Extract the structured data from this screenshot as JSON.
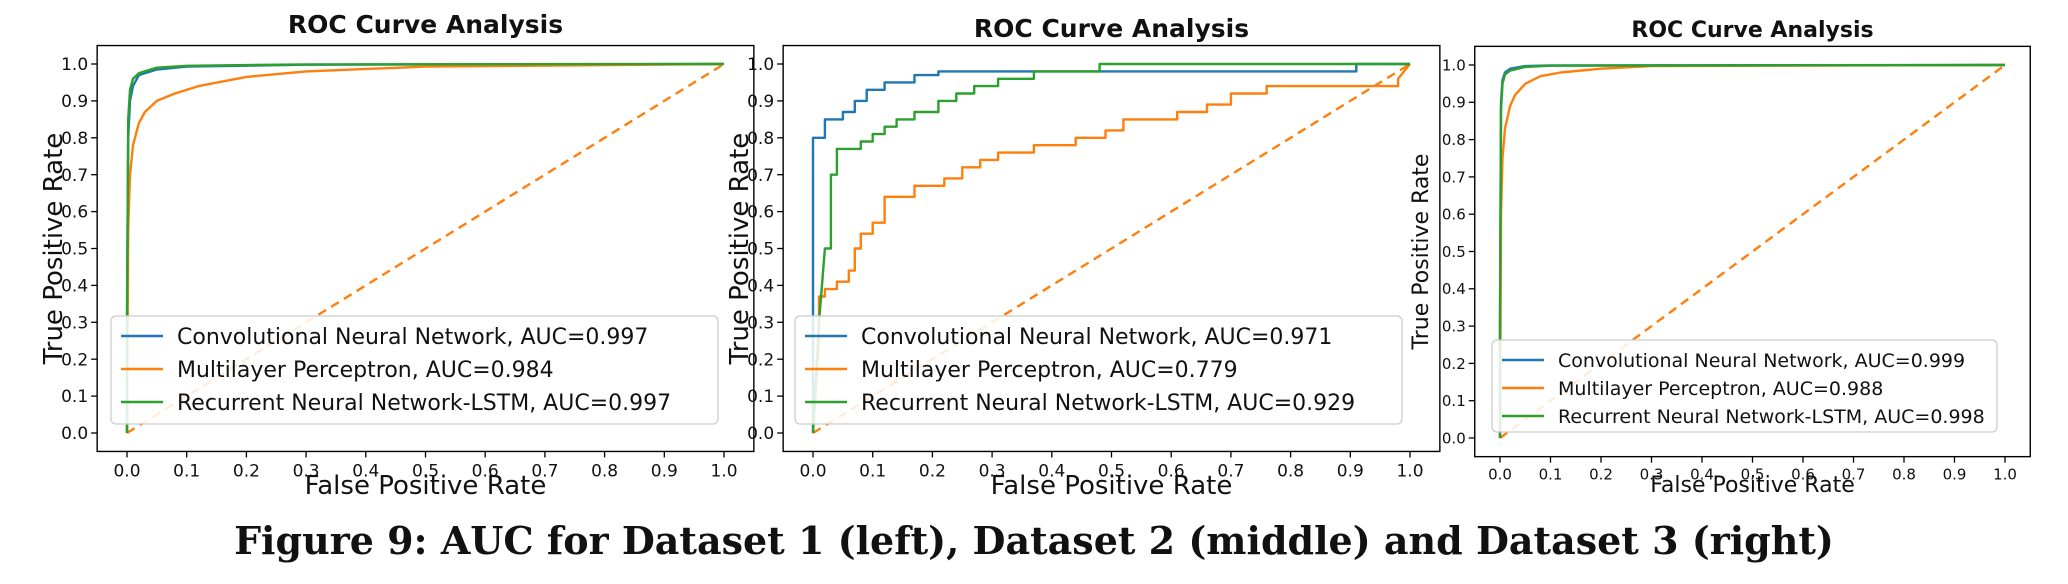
{
  "caption": "Figure 9: AUC for Dataset 1 (left), Dataset 2 (middle) and Dataset 3 (right)",
  "colors": {
    "cnn": "#1f77b4",
    "mlp": "#ff7f0e",
    "lstm": "#2ca02c",
    "diagonal": "#ff7f0e"
  },
  "chart_data": [
    {
      "type": "line",
      "title": "ROC Curve Analysis",
      "xlabel": "False Positive Rate",
      "ylabel": "True Positive Rate",
      "xlim": [
        0,
        1
      ],
      "ylim": [
        0,
        1
      ],
      "xticks": [
        "0.0",
        "0.1",
        "0.2",
        "0.3",
        "0.4",
        "0.5",
        "0.6",
        "0.7",
        "0.8",
        "0.9",
        "1.0"
      ],
      "yticks": [
        "0.0",
        "0.1",
        "0.2",
        "0.3",
        "0.4",
        "0.5",
        "0.6",
        "0.7",
        "0.8",
        "0.9",
        "1.0"
      ],
      "grid": false,
      "legend_position": "lower-right",
      "diagonal": [
        [
          0,
          0
        ],
        [
          1,
          1
        ]
      ],
      "series": [
        {
          "name": "Convolutional Neural Network, AUC=0.997",
          "points": [
            [
              0,
              0
            ],
            [
              0,
              0.3
            ],
            [
              0.002,
              0.8
            ],
            [
              0.005,
              0.9
            ],
            [
              0.01,
              0.94
            ],
            [
              0.02,
              0.97
            ],
            [
              0.05,
              0.985
            ],
            [
              0.1,
              0.993
            ],
            [
              0.3,
              0.998
            ],
            [
              1,
              1
            ]
          ]
        },
        {
          "name": "Multilayer Perceptron, AUC=0.984",
          "points": [
            [
              0,
              0
            ],
            [
              0.002,
              0.55
            ],
            [
              0.005,
              0.7
            ],
            [
              0.01,
              0.78
            ],
            [
              0.02,
              0.84
            ],
            [
              0.03,
              0.87
            ],
            [
              0.05,
              0.9
            ],
            [
              0.08,
              0.92
            ],
            [
              0.12,
              0.94
            ],
            [
              0.2,
              0.965
            ],
            [
              0.3,
              0.98
            ],
            [
              0.5,
              0.993
            ],
            [
              1,
              1
            ]
          ]
        },
        {
          "name": "Recurrent Neural Network-LSTM, AUC=0.997",
          "points": [
            [
              0,
              0
            ],
            [
              0,
              0.3
            ],
            [
              0.002,
              0.85
            ],
            [
              0.005,
              0.93
            ],
            [
              0.01,
              0.96
            ],
            [
              0.02,
              0.975
            ],
            [
              0.05,
              0.99
            ],
            [
              0.1,
              0.995
            ],
            [
              0.3,
              0.999
            ],
            [
              1,
              1
            ]
          ]
        }
      ]
    },
    {
      "type": "line",
      "title": "ROC Curve Analysis",
      "xlabel": "False Positive Rate",
      "ylabel": "True Positive Rate",
      "xlim": [
        0,
        1
      ],
      "ylim": [
        0,
        1
      ],
      "xticks": [
        "0.0",
        "0.1",
        "0.2",
        "0.3",
        "0.4",
        "0.5",
        "0.6",
        "0.7",
        "0.8",
        "0.9",
        "1.0"
      ],
      "yticks": [
        "0.0",
        "0.1",
        "0.2",
        "0.3",
        "0.4",
        "0.5",
        "0.6",
        "0.7",
        "0.8",
        "0.9",
        "1.0"
      ],
      "grid": false,
      "legend_position": "lower-right",
      "diagonal": [
        [
          0,
          0
        ],
        [
          1,
          1
        ]
      ],
      "series": [
        {
          "name": "Convolutional Neural Network, AUC=0.971",
          "points": [
            [
              0,
              0
            ],
            [
              0,
              0.8
            ],
            [
              0.02,
              0.8
            ],
            [
              0.02,
              0.85
            ],
            [
              0.05,
              0.85
            ],
            [
              0.05,
              0.87
            ],
            [
              0.07,
              0.87
            ],
            [
              0.07,
              0.9
            ],
            [
              0.09,
              0.9
            ],
            [
              0.09,
              0.93
            ],
            [
              0.12,
              0.93
            ],
            [
              0.12,
              0.95
            ],
            [
              0.17,
              0.95
            ],
            [
              0.17,
              0.97
            ],
            [
              0.21,
              0.97
            ],
            [
              0.21,
              0.98
            ],
            [
              0.91,
              0.98
            ],
            [
              0.91,
              1.0
            ],
            [
              1,
              1
            ]
          ]
        },
        {
          "name": "Multilayer Perceptron, AUC=0.779",
          "points": [
            [
              0,
              0
            ],
            [
              0.01,
              0.25
            ],
            [
              0.01,
              0.37
            ],
            [
              0.02,
              0.37
            ],
            [
              0.02,
              0.39
            ],
            [
              0.04,
              0.39
            ],
            [
              0.04,
              0.41
            ],
            [
              0.06,
              0.41
            ],
            [
              0.06,
              0.44
            ],
            [
              0.07,
              0.44
            ],
            [
              0.07,
              0.5
            ],
            [
              0.08,
              0.5
            ],
            [
              0.08,
              0.54
            ],
            [
              0.1,
              0.54
            ],
            [
              0.1,
              0.57
            ],
            [
              0.12,
              0.57
            ],
            [
              0.12,
              0.64
            ],
            [
              0.17,
              0.64
            ],
            [
              0.17,
              0.67
            ],
            [
              0.22,
              0.67
            ],
            [
              0.22,
              0.69
            ],
            [
              0.25,
              0.69
            ],
            [
              0.25,
              0.72
            ],
            [
              0.28,
              0.72
            ],
            [
              0.28,
              0.74
            ],
            [
              0.31,
              0.74
            ],
            [
              0.31,
              0.76
            ],
            [
              0.37,
              0.76
            ],
            [
              0.37,
              0.78
            ],
            [
              0.44,
              0.78
            ],
            [
              0.44,
              0.8
            ],
            [
              0.49,
              0.8
            ],
            [
              0.49,
              0.82
            ],
            [
              0.52,
              0.82
            ],
            [
              0.52,
              0.85
            ],
            [
              0.61,
              0.85
            ],
            [
              0.61,
              0.87
            ],
            [
              0.66,
              0.87
            ],
            [
              0.66,
              0.89
            ],
            [
              0.7,
              0.89
            ],
            [
              0.7,
              0.92
            ],
            [
              0.76,
              0.92
            ],
            [
              0.76,
              0.94
            ],
            [
              0.98,
              0.94
            ],
            [
              0.98,
              0.96
            ],
            [
              1,
              1
            ]
          ]
        },
        {
          "name": "Recurrent Neural Network-LSTM, AUC=0.929",
          "points": [
            [
              0,
              0
            ],
            [
              0.01,
              0.3
            ],
            [
              0.02,
              0.5
            ],
            [
              0.03,
              0.5
            ],
            [
              0.03,
              0.7
            ],
            [
              0.04,
              0.7
            ],
            [
              0.04,
              0.77
            ],
            [
              0.08,
              0.77
            ],
            [
              0.08,
              0.79
            ],
            [
              0.1,
              0.79
            ],
            [
              0.1,
              0.81
            ],
            [
              0.12,
              0.81
            ],
            [
              0.12,
              0.83
            ],
            [
              0.14,
              0.83
            ],
            [
              0.14,
              0.85
            ],
            [
              0.17,
              0.85
            ],
            [
              0.17,
              0.87
            ],
            [
              0.21,
              0.87
            ],
            [
              0.21,
              0.9
            ],
            [
              0.24,
              0.9
            ],
            [
              0.24,
              0.92
            ],
            [
              0.27,
              0.92
            ],
            [
              0.27,
              0.94
            ],
            [
              0.31,
              0.94
            ],
            [
              0.31,
              0.96
            ],
            [
              0.37,
              0.96
            ],
            [
              0.37,
              0.98
            ],
            [
              0.48,
              0.98
            ],
            [
              0.48,
              1.0
            ],
            [
              1,
              1
            ]
          ]
        }
      ]
    },
    {
      "type": "line",
      "title": "ROC Curve Analysis",
      "xlabel": "False Positive Rate",
      "ylabel": "True Positive Rate",
      "xlim": [
        0,
        1
      ],
      "ylim": [
        0,
        1
      ],
      "xticks": [
        "0.0",
        "0.1",
        "0.2",
        "0.3",
        "0.4",
        "0.5",
        "0.6",
        "0.7",
        "0.8",
        "0.9",
        "1.0"
      ],
      "yticks": [
        "0.0",
        "0.1",
        "0.2",
        "0.3",
        "0.4",
        "0.5",
        "0.6",
        "0.7",
        "0.8",
        "0.9",
        "1.0"
      ],
      "grid": false,
      "legend_position": "lower-right",
      "diagonal": [
        [
          0,
          0
        ],
        [
          1,
          1
        ]
      ],
      "series": [
        {
          "name": "Convolutional Neural Network, AUC=0.999",
          "points": [
            [
              0,
              0
            ],
            [
              0,
              0.3
            ],
            [
              0.002,
              0.9
            ],
            [
              0.005,
              0.96
            ],
            [
              0.01,
              0.98
            ],
            [
              0.02,
              0.99
            ],
            [
              0.05,
              0.997
            ],
            [
              0.1,
              0.999
            ],
            [
              1,
              1
            ]
          ]
        },
        {
          "name": "Multilayer Perceptron, AUC=0.988",
          "points": [
            [
              0,
              0
            ],
            [
              0.002,
              0.6
            ],
            [
              0.005,
              0.75
            ],
            [
              0.01,
              0.83
            ],
            [
              0.02,
              0.89
            ],
            [
              0.03,
              0.92
            ],
            [
              0.05,
              0.95
            ],
            [
              0.08,
              0.97
            ],
            [
              0.12,
              0.98
            ],
            [
              0.2,
              0.99
            ],
            [
              0.3,
              0.997
            ],
            [
              1,
              1
            ]
          ]
        },
        {
          "name": "Recurrent Neural Network-LSTM, AUC=0.998",
          "points": [
            [
              0,
              0
            ],
            [
              0,
              0.3
            ],
            [
              0.002,
              0.88
            ],
            [
              0.005,
              0.95
            ],
            [
              0.01,
              0.975
            ],
            [
              0.02,
              0.985
            ],
            [
              0.05,
              0.995
            ],
            [
              0.1,
              0.998
            ],
            [
              1,
              1
            ]
          ]
        }
      ]
    }
  ]
}
